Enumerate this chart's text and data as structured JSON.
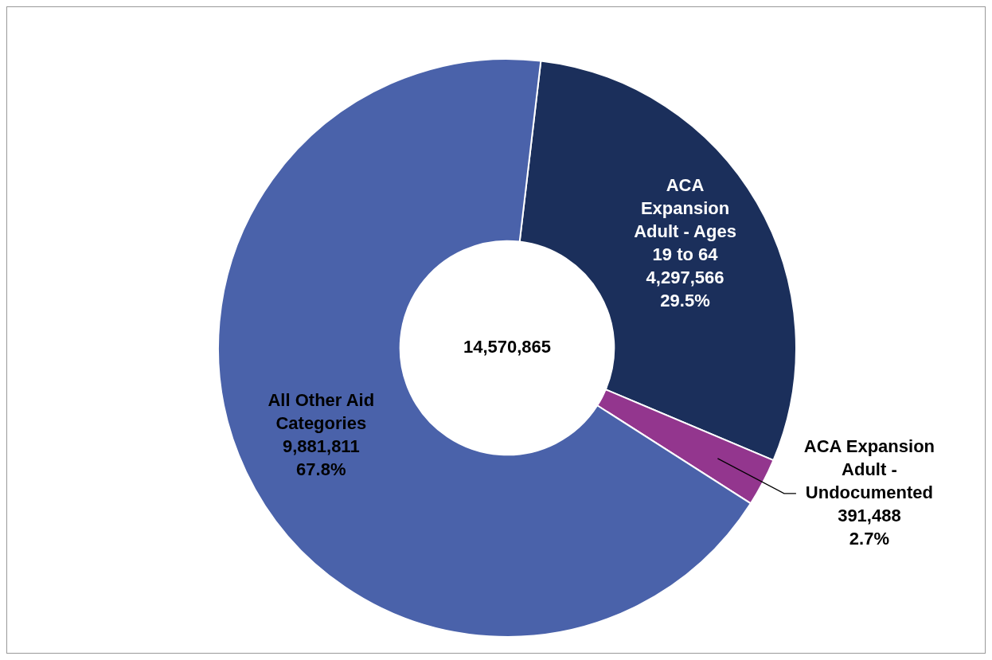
{
  "chart_data": {
    "type": "donut",
    "categories": [
      "ACA Expansion Adult - Ages 19 to 64",
      "ACA Expansion Adult - Undocumented",
      "All Other Aid Categories"
    ],
    "values": [
      4297566,
      391488,
      9881811
    ],
    "value_labels": [
      "4,297,566 29.5%",
      "391,488 2.7%",
      "9,881,811 67.8%"
    ],
    "colors": [
      "#1b2f5b",
      "#93368e",
      "#4a62aa"
    ],
    "annotations": [
      "14,570,865"
    ],
    "legend": false
  }
}
